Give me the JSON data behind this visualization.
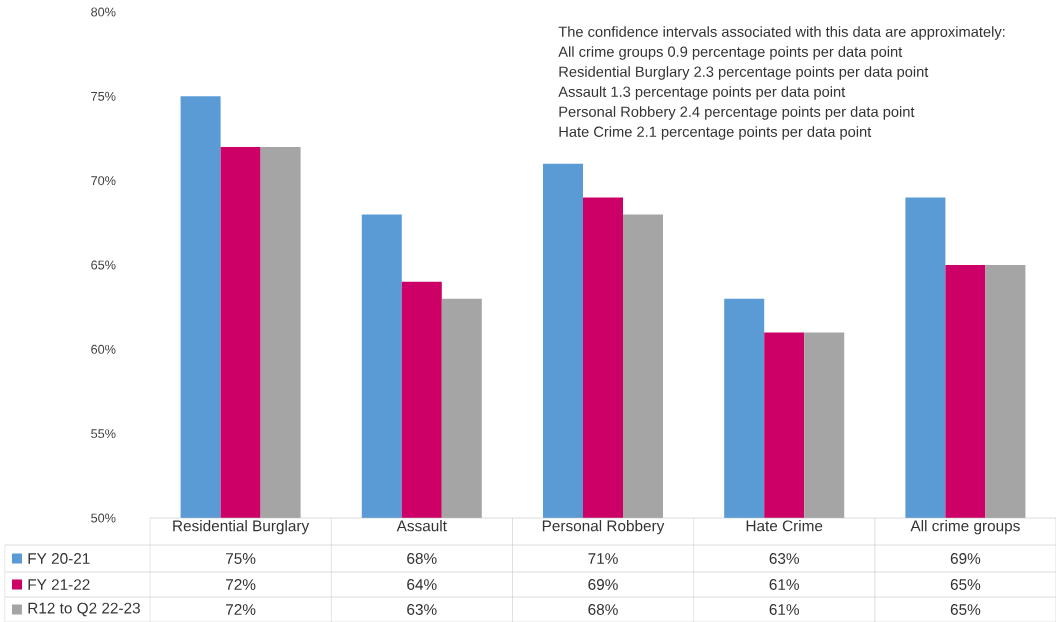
{
  "chart_data": {
    "type": "bar",
    "categories": [
      "Residential Burglary",
      "Assault",
      "Personal Robbery",
      "Hate Crime",
      "All crime groups"
    ],
    "series": [
      {
        "name": "FY 20-21",
        "color": "#5b9bd5",
        "values": [
          75,
          68,
          71,
          63,
          69
        ],
        "value_labels": [
          "75%",
          "68%",
          "71%",
          "63%",
          "69%"
        ]
      },
      {
        "name": "FY 21-22",
        "color": "#cc0066",
        "values": [
          72,
          64,
          69,
          61,
          65
        ],
        "value_labels": [
          "72%",
          "64%",
          "69%",
          "61%",
          "65%"
        ]
      },
      {
        "name": "R12 to Q2 22-23",
        "color": "#a5a5a5",
        "values": [
          72,
          63,
          68,
          61,
          65
        ],
        "value_labels": [
          "72%",
          "63%",
          "68%",
          "61%",
          "65%"
        ]
      }
    ],
    "ylim": [
      50,
      80
    ],
    "yticks": [
      {
        "value": 50,
        "label": "50%"
      },
      {
        "value": 55,
        "label": "55%"
      },
      {
        "value": 60,
        "label": "60%"
      },
      {
        "value": 65,
        "label": "65%"
      },
      {
        "value": 70,
        "label": "70%"
      },
      {
        "value": 75,
        "label": "75%"
      },
      {
        "value": 80,
        "label": "80%"
      }
    ],
    "grid": false,
    "legend": "bottom",
    "annotations": [
      "The confidence intervals associated with this data are approximately:",
      "All crime groups 0.9 percentage points per data point",
      "Residential Burglary 2.3 percentage points per data point",
      "Assault 1.3 percentage points per data point",
      "Personal Robbery 2.4 percentage points per data point",
      "Hate Crime 2.1 percentage points per data point"
    ]
  }
}
